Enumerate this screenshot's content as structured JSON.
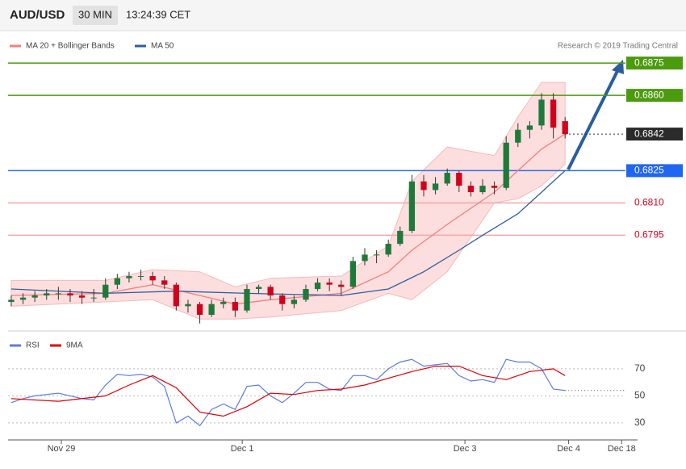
{
  "header": {
    "symbol": "AUD/USD",
    "timeframe": "30 MIN",
    "time": "13:24:39 CET"
  },
  "chart_data": [
    {
      "type": "candlestick",
      "credit": "Research © 2019 Trading Central",
      "up_color": "#1f7a3a",
      "down_color": "#d0021b",
      "xlim": [
        -0.27,
        53.15
      ],
      "ylim": [
        0.67505,
        0.68893
      ],
      "candles": [
        [
          0.6764,
          0.6767,
          0.6762,
          0.6765
        ],
        [
          0.6765,
          0.6768,
          0.6763,
          0.6766
        ],
        [
          0.6766,
          0.6769,
          0.6764,
          0.6767
        ],
        [
          0.6767,
          0.677,
          0.6765,
          0.6768
        ],
        [
          0.6768,
          0.6771,
          0.6765,
          0.6768
        ],
        [
          0.6768,
          0.677,
          0.6764,
          0.6767
        ],
        [
          0.6767,
          0.6769,
          0.6763,
          0.6766
        ],
        [
          0.6766,
          0.677,
          0.6764,
          0.6766
        ],
        [
          0.6766,
          0.6775,
          0.6765,
          0.6772
        ],
        [
          0.6772,
          0.6777,
          0.677,
          0.6775
        ],
        [
          0.6775,
          0.6778,
          0.6773,
          0.6776
        ],
        [
          0.6776,
          0.6779,
          0.6774,
          0.6776
        ],
        [
          0.6776,
          0.6778,
          0.6772,
          0.6774
        ],
        [
          0.6774,
          0.6776,
          0.677,
          0.6772
        ],
        [
          0.6772,
          0.6773,
          0.676,
          0.6762
        ],
        [
          0.6762,
          0.6765,
          0.6759,
          0.6763
        ],
        [
          0.6763,
          0.6764,
          0.6754,
          0.6758
        ],
        [
          0.6758,
          0.6765,
          0.6757,
          0.6763
        ],
        [
          0.6763,
          0.6766,
          0.6761,
          0.6764
        ],
        [
          0.6764,
          0.6766,
          0.6757,
          0.676
        ],
        [
          0.676,
          0.6772,
          0.6759,
          0.677
        ],
        [
          0.677,
          0.6772,
          0.6768,
          0.6771
        ],
        [
          0.6771,
          0.6772,
          0.6765,
          0.6767
        ],
        [
          0.6767,
          0.6768,
          0.676,
          0.6763
        ],
        [
          0.6763,
          0.6767,
          0.6761,
          0.6765
        ],
        [
          0.6765,
          0.6772,
          0.6764,
          0.677
        ],
        [
          0.677,
          0.6775,
          0.6769,
          0.6773
        ],
        [
          0.6773,
          0.6775,
          0.6769,
          0.6772
        ],
        [
          0.6772,
          0.6774,
          0.6767,
          0.6771
        ],
        [
          0.6771,
          0.6785,
          0.677,
          0.6783
        ],
        [
          0.6783,
          0.6789,
          0.6781,
          0.6786
        ],
        [
          0.6786,
          0.6788,
          0.6782,
          0.6786
        ],
        [
          0.6786,
          0.6793,
          0.6785,
          0.6791
        ],
        [
          0.6791,
          0.6799,
          0.679,
          0.6797
        ],
        [
          0.6797,
          0.6823,
          0.6796,
          0.682
        ],
        [
          0.682,
          0.6823,
          0.6813,
          0.6816
        ],
        [
          0.6816,
          0.6822,
          0.6814,
          0.6819
        ],
        [
          0.6819,
          0.6826,
          0.6818,
          0.6824
        ],
        [
          0.6824,
          0.6825,
          0.6815,
          0.6818
        ],
        [
          0.6818,
          0.682,
          0.6813,
          0.6815
        ],
        [
          0.6815,
          0.6821,
          0.6814,
          0.6818
        ],
        [
          0.6818,
          0.682,
          0.6814,
          0.6817
        ],
        [
          0.6817,
          0.6841,
          0.6816,
          0.6838
        ],
        [
          0.6838,
          0.6847,
          0.6836,
          0.6844
        ],
        [
          0.6844,
          0.6848,
          0.684,
          0.6846
        ],
        [
          0.6846,
          0.6861,
          0.6844,
          0.6858
        ],
        [
          0.6858,
          0.6861,
          0.684,
          0.6845
        ],
        [
          0.6848,
          0.685,
          0.684,
          0.6842
        ]
      ],
      "overlays": [
        {
          "name": "MA 20 + Bollinger Bands",
          "color": "#f08080",
          "band_color": "#fddede",
          "x": [
            0,
            8,
            12,
            16,
            19,
            22,
            28,
            32,
            34,
            37,
            41,
            43,
            45,
            47
          ],
          "values": [
            0.6767,
            0.6768,
            0.6772,
            0.6767,
            0.6763,
            0.6765,
            0.6768,
            0.6778,
            0.6788,
            0.68,
            0.6815,
            0.6825,
            0.6835,
            0.6842
          ],
          "upper": [
            0.6774,
            0.6774,
            0.6779,
            0.6778,
            0.6771,
            0.6775,
            0.6776,
            0.679,
            0.682,
            0.6836,
            0.6832,
            0.685,
            0.6866,
            0.6866
          ],
          "lower": [
            0.6762,
            0.6764,
            0.6765,
            0.6756,
            0.6756,
            0.6757,
            0.676,
            0.6768,
            0.6765,
            0.6778,
            0.681,
            0.6812,
            0.6818,
            0.6828
          ]
        },
        {
          "name": "MA 50",
          "color": "#2e5e9e",
          "x": [
            0,
            8,
            14,
            20,
            28,
            32,
            35,
            38,
            40,
            43,
            45,
            47
          ],
          "values": [
            0.677,
            0.6768,
            0.6769,
            0.6768,
            0.6767,
            0.677,
            0.6778,
            0.6788,
            0.6795,
            0.6805,
            0.6815,
            0.6825
          ]
        }
      ],
      "levels": [
        {
          "value": 0.6875,
          "color": "#4c9a0e",
          "text_color": "#ffffff",
          "fill": "#4c9a0e",
          "style": "solid"
        },
        {
          "value": 0.686,
          "label": "0.6860",
          "color": "#4c9a0e",
          "text_color": "#ffffff",
          "fill": "#4c9a0e",
          "style": "solid"
        },
        {
          "value": 0.6842,
          "color": "#333333",
          "text_color": "#ffffff",
          "fill": "#2b2b2b",
          "style": "dotted"
        },
        {
          "value": 0.6825,
          "color": "#2f6fe0",
          "text_color": "#ffffff",
          "fill": "#1f66f0",
          "style": "solid"
        },
        {
          "value": 0.681,
          "label": "0.6810",
          "color": "#f4a6a6",
          "text_color": "#d0021b",
          "fill": "#ffffff",
          "style": "solid"
        },
        {
          "value": 0.6795,
          "color": "#f4a6a6",
          "text_color": "#d0021b",
          "fill": "#ffffff",
          "style": "solid"
        }
      ]
    },
    {
      "type": "line",
      "xlim": [
        -0.27,
        53.15
      ],
      "ylim": [
        20.4,
        80.1
      ],
      "yticks": [
        30,
        50,
        70
      ],
      "grid": true,
      "xticks": [
        {
          "value": 4.25,
          "label": "Nov 29"
        },
        {
          "value": 19.6,
          "label": "Dec 1"
        },
        {
          "value": 38.5,
          "label": "Dec 3"
        },
        {
          "value": 47.3,
          "label": "Dec 4"
        },
        {
          "value": 51.8,
          "label": "Dec 18"
        }
      ],
      "series": [
        {
          "name": "RSI",
          "color": "#5b7be0",
          "x": [
            0,
            1,
            2,
            3,
            4,
            5,
            6,
            7,
            8,
            9,
            10,
            11,
            12,
            13,
            14,
            15,
            16,
            17,
            18,
            19,
            20,
            21,
            22,
            23,
            24,
            25,
            26,
            27,
            28,
            29,
            30,
            31,
            32,
            33,
            34,
            35,
            36,
            37,
            38,
            39,
            40,
            41,
            42,
            43,
            44,
            45,
            46,
            47
          ],
          "values": [
            45,
            48,
            50,
            51,
            52,
            50,
            48,
            47,
            58,
            66,
            65,
            66,
            64,
            57,
            30,
            35,
            28,
            40,
            44,
            40,
            57,
            58,
            50,
            45,
            52,
            60,
            60,
            55,
            54,
            65,
            65,
            62,
            70,
            75,
            77,
            72,
            73,
            74,
            65,
            61,
            62,
            60,
            77,
            75,
            75,
            70,
            55,
            54
          ]
        },
        {
          "name": "9MA",
          "color": "#e00000",
          "x": [
            0,
            4,
            8,
            10,
            12,
            14,
            16,
            18,
            20,
            22,
            24,
            26,
            28,
            30,
            32,
            34,
            36,
            38,
            40,
            42,
            44,
            46,
            47
          ],
          "values": [
            48,
            46,
            50,
            58,
            65,
            56,
            38,
            35,
            42,
            52,
            51,
            54,
            55,
            58,
            63,
            68,
            72,
            72,
            65,
            62,
            68,
            70,
            65
          ]
        }
      ]
    }
  ]
}
